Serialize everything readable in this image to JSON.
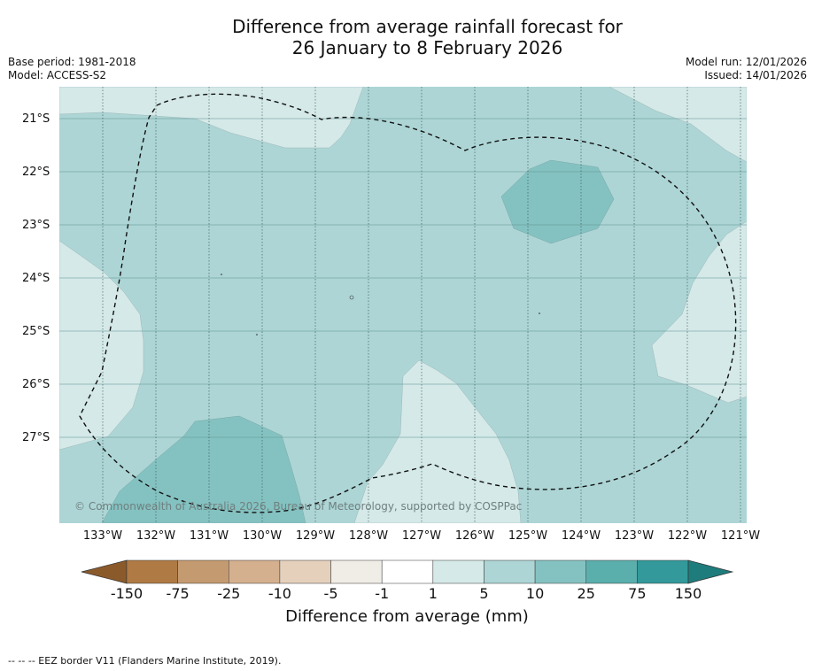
{
  "title_line1": "Difference from average rainfall forecast for",
  "title_line2": "26 January to 8 February 2026",
  "base_period": "Base period: 1981-2018",
  "model": "Model: ACCESS-S2",
  "model_run": "Model run: 12/01/2026",
  "issued": "Issued: 14/01/2026",
  "lat_labels": [
    "21°S",
    "22°S",
    "23°S",
    "24°S",
    "25°S",
    "26°S",
    "27°S"
  ],
  "lon_labels": [
    "133°W",
    "132°W",
    "131°W",
    "130°W",
    "129°W",
    "128°W",
    "127°W",
    "126°W",
    "125°W",
    "124°W",
    "123°W",
    "122°W",
    "121°W"
  ],
  "copyright": "© Commonwealth of Australia 2026, Bureau of Meteorology, supported by COSPPac",
  "colorbar": {
    "ticks": [
      "-150",
      "-75",
      "-25",
      "-10",
      "-5",
      "-1",
      "1",
      "5",
      "10",
      "25",
      "75",
      "150"
    ],
    "label": "Difference from average (mm)",
    "colors": [
      "#8b5a2b",
      "#b07a45",
      "#c49a70",
      "#d4b08f",
      "#e5d0bc",
      "#f0ece6",
      "#ffffff",
      "#d4e9e8",
      "#add5d5",
      "#84c2c1",
      "#5aafad",
      "#33999a",
      "#1f7c7c"
    ]
  },
  "footer": "--  --  -- EEZ border V11 (Flanders Marine Institute, 2019)."
}
